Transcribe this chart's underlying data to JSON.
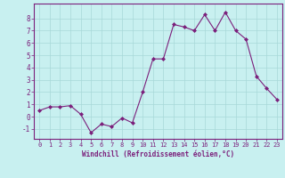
{
  "x": [
    0,
    1,
    2,
    3,
    4,
    5,
    6,
    7,
    8,
    9,
    10,
    11,
    12,
    13,
    14,
    15,
    16,
    17,
    18,
    19,
    20,
    21,
    22,
    23
  ],
  "y": [
    0.5,
    0.8,
    0.8,
    0.9,
    0.2,
    -1.3,
    -0.6,
    -0.8,
    -0.1,
    -0.5,
    2.0,
    4.7,
    4.7,
    7.5,
    7.3,
    7.0,
    8.3,
    7.0,
    8.5,
    7.0,
    6.3,
    3.3,
    2.3,
    1.4
  ],
  "line_color": "#7b1f7b",
  "marker": "D",
  "marker_size": 2,
  "bg_color": "#c8f0f0",
  "grid_color": "#a8d8d8",
  "xlabel": "Windchill (Refroidissement éolien,°C)",
  "xlabel_color": "#7b1f7b",
  "tick_color": "#7b1f7b",
  "spine_color": "#7b1f7b",
  "ylim": [
    -1.8,
    9.2
  ],
  "yticks": [
    -1,
    0,
    1,
    2,
    3,
    4,
    5,
    6,
    7,
    8
  ],
  "xlim": [
    -0.5,
    23.5
  ],
  "xticks": [
    0,
    1,
    2,
    3,
    4,
    5,
    6,
    7,
    8,
    9,
    10,
    11,
    12,
    13,
    14,
    15,
    16,
    17,
    18,
    19,
    20,
    21,
    22,
    23
  ]
}
